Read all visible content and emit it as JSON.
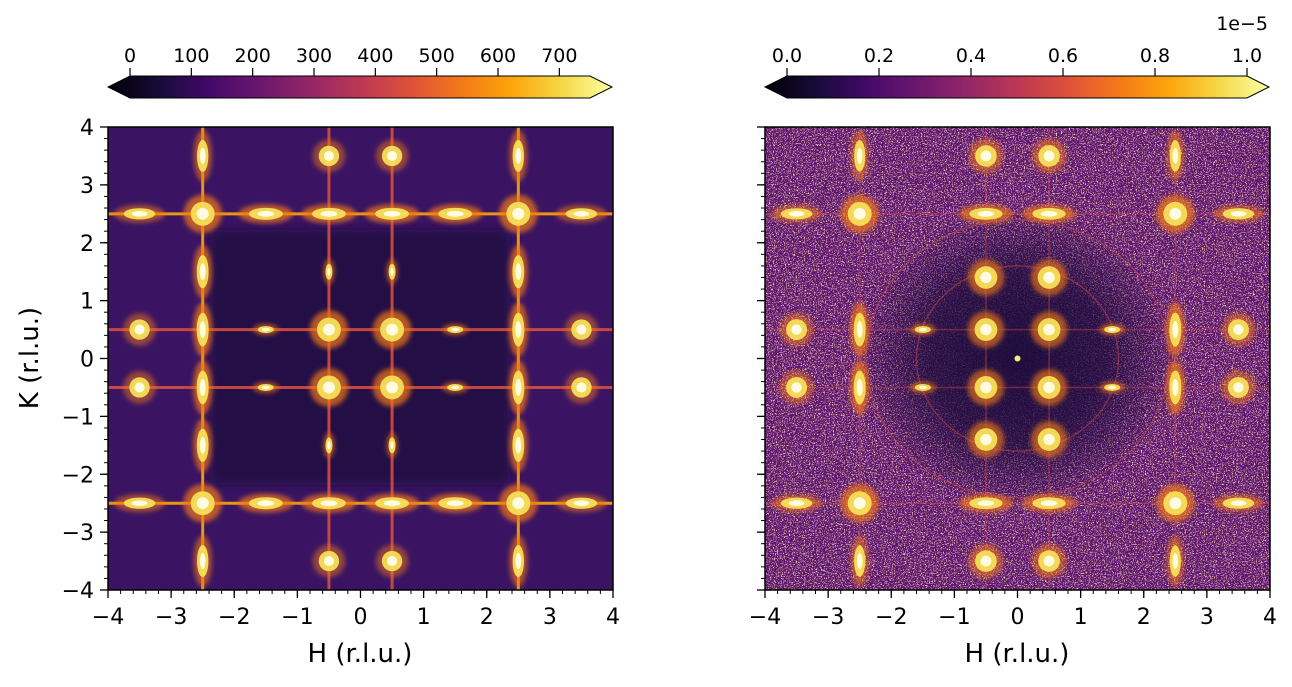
{
  "chart_data": [
    {
      "type": "heatmap",
      "title": "",
      "xlabel": "H (r.l.u.)",
      "ylabel": "K (r.l.u.)",
      "xlim": [
        -4,
        4
      ],
      "ylim": [
        -4,
        4
      ],
      "x_ticks": [
        -4,
        -3,
        -2,
        -1,
        0,
        1,
        2,
        3,
        4
      ],
      "y_ticks": [
        -4,
        -3,
        -2,
        -1,
        0,
        1,
        2,
        3,
        4
      ],
      "x_tick_labels": [
        "−4",
        "−3",
        "−2",
        "−1",
        "0",
        "1",
        "2",
        "3",
        "4"
      ],
      "y_tick_labels": [
        "−4",
        "−3",
        "−2",
        "−1",
        "0",
        "1",
        "2",
        "3",
        "4"
      ],
      "colormap": "inferno",
      "colorbar": {
        "location": "top",
        "extend": "both",
        "range": [
          0,
          750
        ],
        "ticks": [
          0,
          100,
          200,
          300,
          400,
          500,
          600,
          700
        ],
        "tick_labels": [
          "0",
          "100",
          "200",
          "300",
          "400",
          "500",
          "600",
          "700"
        ],
        "offset_label": ""
      },
      "features": {
        "rod_positions": [
          -2.5,
          -0.5,
          0.5,
          2.5
        ],
        "intense_lines": [
          -2.5,
          2.5
        ],
        "peaks": [
          {
            "h": -2.5,
            "k": 3.5,
            "intensity": 0.85
          },
          {
            "h": -0.5,
            "k": 3.5,
            "intensity": 0.7
          },
          {
            "h": 0.5,
            "k": 3.5,
            "intensity": 0.7
          },
          {
            "h": 2.5,
            "k": 3.5,
            "intensity": 0.85
          },
          {
            "h": -3.5,
            "k": 2.5,
            "intensity": 0.8
          },
          {
            "h": -2.5,
            "k": 2.5,
            "intensity": 1.0
          },
          {
            "h": -1.5,
            "k": 2.5,
            "intensity": 1.0
          },
          {
            "h": -0.5,
            "k": 2.5,
            "intensity": 1.0
          },
          {
            "h": 0.5,
            "k": 2.5,
            "intensity": 1.0
          },
          {
            "h": 1.5,
            "k": 2.5,
            "intensity": 1.0
          },
          {
            "h": 2.5,
            "k": 2.5,
            "intensity": 1.0
          },
          {
            "h": 3.5,
            "k": 2.5,
            "intensity": 0.8
          },
          {
            "h": -2.5,
            "k": 1.5,
            "intensity": 0.95
          },
          {
            "h": -0.5,
            "k": 1.5,
            "intensity": 0.85
          },
          {
            "h": 0.5,
            "k": 1.5,
            "intensity": 0.85
          },
          {
            "h": 2.5,
            "k": 1.5,
            "intensity": 0.95
          },
          {
            "h": -3.5,
            "k": 0.5,
            "intensity": 0.7
          },
          {
            "h": -2.5,
            "k": 0.5,
            "intensity": 1.0
          },
          {
            "h": -1.5,
            "k": 0.5,
            "intensity": 0.9
          },
          {
            "h": -0.5,
            "k": 0.5,
            "intensity": 1.0
          },
          {
            "h": 0.5,
            "k": 0.5,
            "intensity": 1.0
          },
          {
            "h": 1.5,
            "k": 0.5,
            "intensity": 0.9
          },
          {
            "h": 2.5,
            "k": 0.5,
            "intensity": 1.0
          },
          {
            "h": 3.5,
            "k": 0.5,
            "intensity": 0.7
          },
          {
            "h": -3.5,
            "k": -0.5,
            "intensity": 0.7
          },
          {
            "h": -2.5,
            "k": -0.5,
            "intensity": 1.0
          },
          {
            "h": -1.5,
            "k": -0.5,
            "intensity": 0.9
          },
          {
            "h": -0.5,
            "k": -0.5,
            "intensity": 1.0
          },
          {
            "h": 0.5,
            "k": -0.5,
            "intensity": 1.0
          },
          {
            "h": 1.5,
            "k": -0.5,
            "intensity": 0.9
          },
          {
            "h": 2.5,
            "k": -0.5,
            "intensity": 1.0
          },
          {
            "h": 3.5,
            "k": -0.5,
            "intensity": 0.7
          },
          {
            "h": -2.5,
            "k": -1.5,
            "intensity": 0.95
          },
          {
            "h": -0.5,
            "k": -1.5,
            "intensity": 0.85
          },
          {
            "h": 0.5,
            "k": -1.5,
            "intensity": 0.85
          },
          {
            "h": 2.5,
            "k": -1.5,
            "intensity": 0.95
          },
          {
            "h": -3.5,
            "k": -2.5,
            "intensity": 0.8
          },
          {
            "h": -2.5,
            "k": -2.5,
            "intensity": 1.0
          },
          {
            "h": -1.5,
            "k": -2.5,
            "intensity": 1.0
          },
          {
            "h": -0.5,
            "k": -2.5,
            "intensity": 1.0
          },
          {
            "h": 0.5,
            "k": -2.5,
            "intensity": 1.0
          },
          {
            "h": 1.5,
            "k": -2.5,
            "intensity": 1.0
          },
          {
            "h": 2.5,
            "k": -2.5,
            "intensity": 1.0
          },
          {
            "h": 3.5,
            "k": -2.5,
            "intensity": 0.8
          },
          {
            "h": -2.5,
            "k": -3.5,
            "intensity": 0.85
          },
          {
            "h": -0.5,
            "k": -3.5,
            "intensity": 0.7
          },
          {
            "h": 0.5,
            "k": -3.5,
            "intensity": 0.7
          },
          {
            "h": 2.5,
            "k": -3.5,
            "intensity": 0.85
          }
        ]
      }
    },
    {
      "type": "heatmap",
      "title": "",
      "xlabel": "H (r.l.u.)",
      "ylabel": "",
      "xlim": [
        -4,
        4
      ],
      "ylim": [
        -4,
        4
      ],
      "x_ticks": [
        -4,
        -3,
        -2,
        -1,
        0,
        1,
        2,
        3,
        4
      ],
      "x_tick_labels": [
        "−4",
        "−3",
        "−2",
        "−1",
        "0",
        "1",
        "2",
        "3",
        "4"
      ],
      "colormap": "inferno",
      "colorbar": {
        "location": "top",
        "extend": "both",
        "range": [
          0,
          1.0
        ],
        "ticks": [
          0.0,
          0.2,
          0.4,
          0.6,
          0.8,
          1.0
        ],
        "tick_labels": [
          "0.0",
          "0.2",
          "0.4",
          "0.6",
          "0.8",
          "1.0"
        ],
        "offset_label": "1e−5"
      },
      "features": {
        "rod_positions": [
          -2.5,
          -0.5,
          0.5,
          2.5
        ],
        "ring_radii": [
          1.6,
          2.4
        ],
        "peaks": [
          {
            "h": -2.5,
            "k": 3.5,
            "intensity": 0.8
          },
          {
            "h": -0.5,
            "k": 3.5,
            "intensity": 0.8
          },
          {
            "h": 0.5,
            "k": 3.5,
            "intensity": 0.8
          },
          {
            "h": 2.5,
            "k": 3.5,
            "intensity": 0.8
          },
          {
            "h": -3.5,
            "k": 2.5,
            "intensity": 0.8
          },
          {
            "h": -2.5,
            "k": 2.5,
            "intensity": 1.0
          },
          {
            "h": -0.5,
            "k": 2.5,
            "intensity": 0.95
          },
          {
            "h": 0.5,
            "k": 2.5,
            "intensity": 0.95
          },
          {
            "h": 2.5,
            "k": 2.5,
            "intensity": 1.0
          },
          {
            "h": 3.5,
            "k": 2.5,
            "intensity": 0.8
          },
          {
            "h": -2.5,
            "k": 0.5,
            "intensity": 1.0
          },
          {
            "h": -1.5,
            "k": 0.5,
            "intensity": 0.95
          },
          {
            "h": -0.5,
            "k": 0.5,
            "intensity": 0.9
          },
          {
            "h": 0.5,
            "k": 0.5,
            "intensity": 0.9
          },
          {
            "h": 1.5,
            "k": 0.5,
            "intensity": 0.95
          },
          {
            "h": 2.5,
            "k": 0.5,
            "intensity": 1.0
          },
          {
            "h": -3.5,
            "k": 0.5,
            "intensity": 0.75
          },
          {
            "h": 3.5,
            "k": 0.5,
            "intensity": 0.75
          },
          {
            "h": -2.5,
            "k": -0.5,
            "intensity": 1.0
          },
          {
            "h": -1.5,
            "k": -0.5,
            "intensity": 0.95
          },
          {
            "h": -0.5,
            "k": -0.5,
            "intensity": 0.9
          },
          {
            "h": 0.5,
            "k": -0.5,
            "intensity": 0.9
          },
          {
            "h": 1.5,
            "k": -0.5,
            "intensity": 0.95
          },
          {
            "h": 2.5,
            "k": -0.5,
            "intensity": 1.0
          },
          {
            "h": -3.5,
            "k": -0.5,
            "intensity": 0.75
          },
          {
            "h": 3.5,
            "k": -0.5,
            "intensity": 0.75
          },
          {
            "h": -0.5,
            "k": 1.4,
            "intensity": 0.9
          },
          {
            "h": 0.5,
            "k": 1.4,
            "intensity": 0.9
          },
          {
            "h": -0.5,
            "k": -1.4,
            "intensity": 0.9
          },
          {
            "h": 0.5,
            "k": -1.4,
            "intensity": 0.9
          },
          {
            "h": -3.5,
            "k": -2.5,
            "intensity": 0.8
          },
          {
            "h": -2.5,
            "k": -2.5,
            "intensity": 1.0
          },
          {
            "h": -0.5,
            "k": -2.5,
            "intensity": 0.95
          },
          {
            "h": 0.5,
            "k": -2.5,
            "intensity": 0.95
          },
          {
            "h": 2.5,
            "k": -2.5,
            "intensity": 1.0
          },
          {
            "h": 3.5,
            "k": -2.5,
            "intensity": 0.8
          },
          {
            "h": -2.5,
            "k": -3.5,
            "intensity": 0.8
          },
          {
            "h": -0.5,
            "k": -3.5,
            "intensity": 0.8
          },
          {
            "h": 0.5,
            "k": -3.5,
            "intensity": 0.8
          },
          {
            "h": 2.5,
            "k": -3.5,
            "intensity": 0.8
          }
        ]
      }
    }
  ]
}
